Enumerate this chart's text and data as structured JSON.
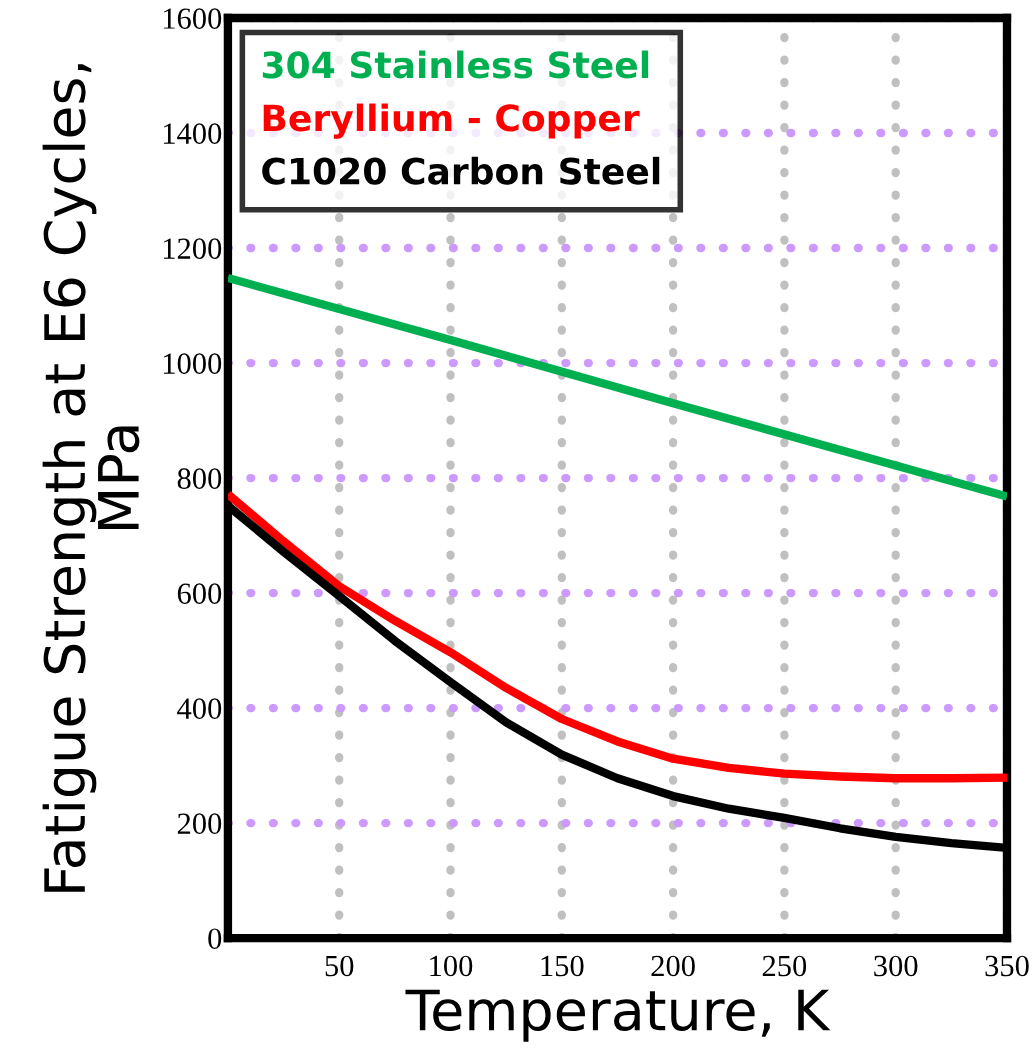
{
  "chart_data": {
    "type": "line",
    "xlabel": "Temperature, K",
    "ylabel": "Fatigue Strength at E6 Cycles,\nMPa",
    "xlim": [
      0,
      350
    ],
    "xticks": [
      50,
      100,
      150,
      200,
      250,
      300,
      350
    ],
    "ylim": [
      0,
      1600
    ],
    "yticks": [
      0,
      200,
      400,
      600,
      800,
      1000,
      1200,
      1400,
      1600
    ],
    "grid": true,
    "legend": "top left",
    "marker": "none",
    "line_style": "solid",
    "series": [
      {
        "name": "304 Stainless Steel",
        "color": "#00b050",
        "x": [
          0,
          100,
          200,
          300,
          350
        ],
        "values": [
          1148,
          1040,
          930,
          822,
          768
        ]
      },
      {
        "name": "Beryllium - Copper",
        "color": "#ff0000",
        "x": [
          0,
          25,
          50,
          75,
          100,
          125,
          150,
          175,
          200,
          225,
          250,
          275,
          300,
          325,
          350
        ],
        "values": [
          772,
          690,
          612,
          552,
          497,
          435,
          381,
          342,
          312,
          296,
          286,
          281,
          278,
          278,
          279
        ]
      },
      {
        "name": "C1020 Carbon Steel",
        "color": "#000000",
        "x": [
          0,
          25,
          50,
          75,
          100,
          125,
          150,
          175,
          200,
          225,
          250,
          275,
          300,
          325,
          350
        ],
        "values": [
          752,
          672,
          595,
          517,
          445,
          375,
          319,
          278,
          247,
          225,
          209,
          191,
          176,
          165,
          157
        ]
      }
    ]
  }
}
